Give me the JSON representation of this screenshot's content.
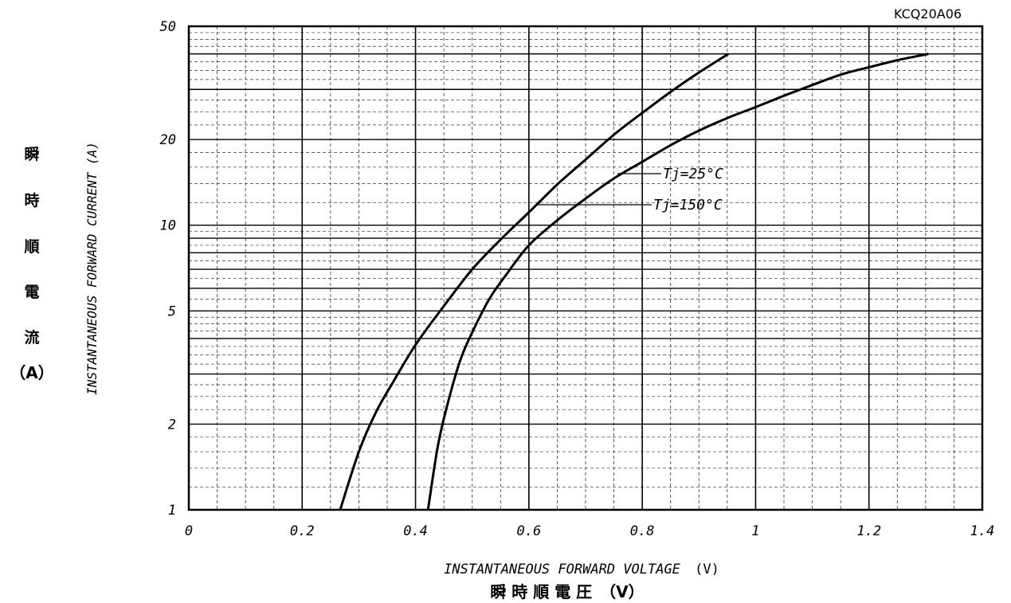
{
  "chart_data": {
    "type": "line",
    "code": "KCQ20A06",
    "xlabel_en": "INSTANTANEOUS FORWARD VOLTAGE",
    "xlabel_unit": "(V)",
    "xlabel_jp": "瞬 時 順 電 圧　（V）",
    "ylabel_en": "INSTANTANEOUS FORWARD CURRENT (A)",
    "ylabel_jp": [
      "瞬",
      "時",
      "順",
      "電",
      "流",
      "（A）"
    ],
    "x_range": [
      0,
      1.4
    ],
    "y_range": [
      1,
      50
    ],
    "y_scale": "log",
    "x_ticks": [
      {
        "v": 0,
        "label": "0"
      },
      {
        "v": 0.2,
        "label": "0.2"
      },
      {
        "v": 0.4,
        "label": "0.4"
      },
      {
        "v": 0.6,
        "label": "0.6"
      },
      {
        "v": 0.8,
        "label": "0.8"
      },
      {
        "v": 1.0,
        "label": "1"
      },
      {
        "v": 1.2,
        "label": "1.2"
      },
      {
        "v": 1.4,
        "label": "1.4"
      }
    ],
    "y_ticks": [
      {
        "v": 1,
        "label": "1"
      },
      {
        "v": 2,
        "label": "2"
      },
      {
        "v": 5,
        "label": "5"
      },
      {
        "v": 10,
        "label": "10"
      },
      {
        "v": 20,
        "label": "20"
      },
      {
        "v": 50,
        "label": "50"
      }
    ],
    "grid": true,
    "series": [
      {
        "name": "Tj=25°C",
        "x": [
          0.267,
          0.3,
          0.33,
          0.36,
          0.4,
          0.45,
          0.5,
          0.55,
          0.6,
          0.65,
          0.7,
          0.75,
          0.8,
          0.85,
          0.9,
          0.952
        ],
        "y": [
          1.0,
          1.6,
          2.2,
          2.8,
          3.8,
          5.2,
          7.0,
          8.9,
          11.1,
          13.9,
          17.0,
          20.8,
          24.8,
          29.4,
          34.4,
          40.0
        ]
      },
      {
        "name": "Tj=150°C",
        "x": [
          0.422,
          0.44,
          0.46,
          0.48,
          0.5,
          0.53,
          0.56,
          0.6,
          0.65,
          0.7,
          0.75,
          0.8,
          0.85,
          0.9,
          0.95,
          1.0,
          1.05,
          1.1,
          1.15,
          1.2,
          1.25,
          1.305
        ],
        "y": [
          1.0,
          1.7,
          2.5,
          3.4,
          4.2,
          5.5,
          6.7,
          8.5,
          10.4,
          12.4,
          14.6,
          16.7,
          19.1,
          21.5,
          23.8,
          26.0,
          28.5,
          31.1,
          33.8,
          35.9,
          38.0,
          40.0
        ]
      }
    ]
  }
}
